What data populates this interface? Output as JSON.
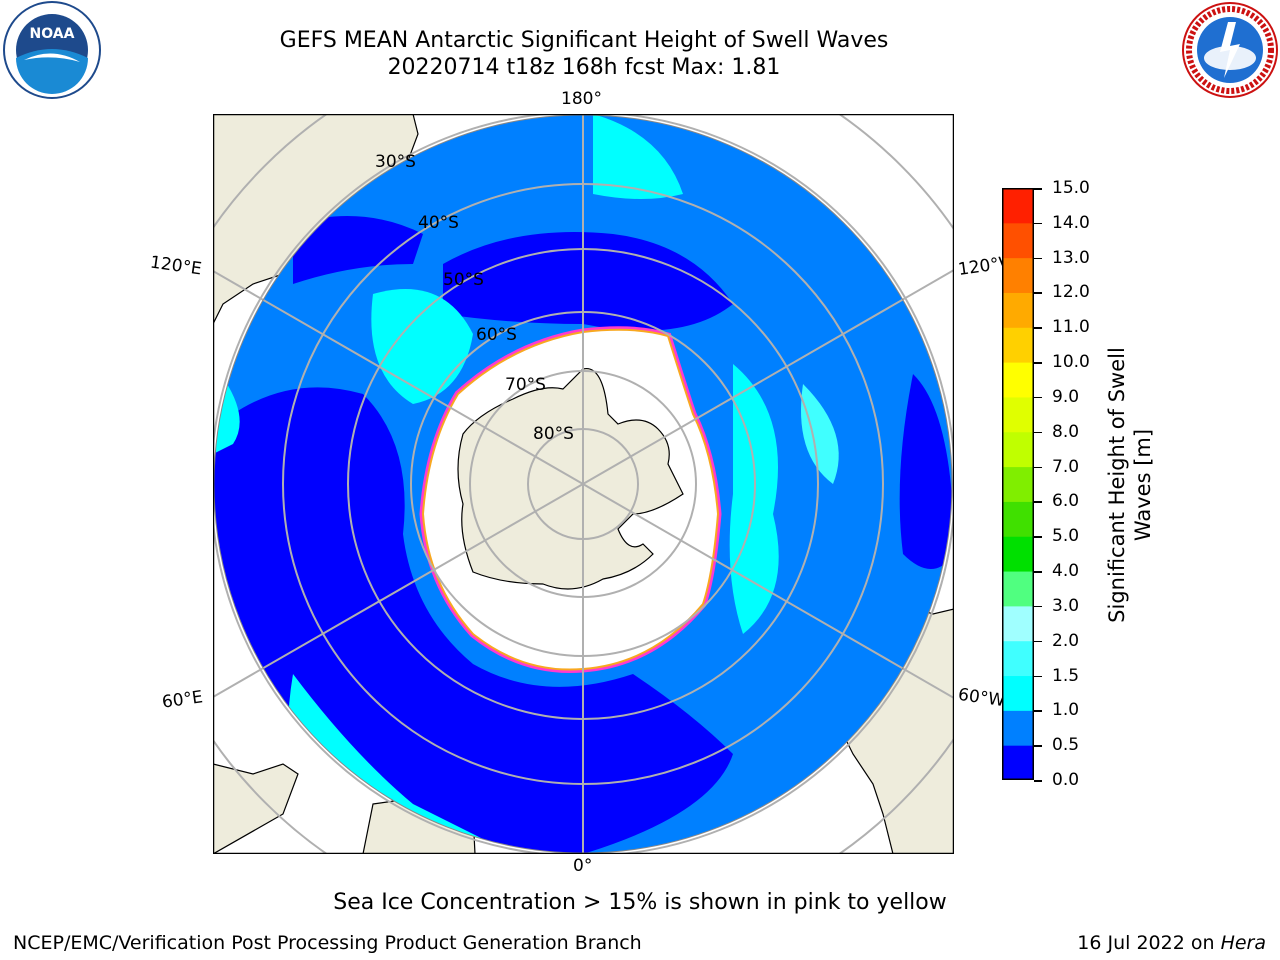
{
  "header": {
    "title_line1": "GEFS MEAN Antarctic Significant Height of Swell Waves",
    "title_line2": "20220714 t18z 168h fcst   Max: 1.81"
  },
  "logos": {
    "left": {
      "text": "NOAA",
      "icon": "noaa-logo-icon"
    },
    "right": {
      "text": "NATIONAL WEATHER SERVICE",
      "icon": "nws-logo-icon"
    }
  },
  "map": {
    "longitude_labels": {
      "top": "180°",
      "bottom": "0°",
      "left_upper": "120°E",
      "left_lower": "60°E",
      "right_upper": "120°W",
      "right_lower": "60°W"
    },
    "latitude_labels": [
      "30°S",
      "40°S",
      "50°S",
      "60°S",
      "70°S",
      "80°S"
    ],
    "colors": {
      "land": "#eeecdc",
      "ice": "#ffffff",
      "grid": "#b0b0b0"
    }
  },
  "colorbar": {
    "label": "Significant Height of Swell Waves [m]",
    "ticks": [
      "0.0",
      "0.5",
      "1.0",
      "1.5",
      "2.0",
      "3.0",
      "4.0",
      "5.0",
      "6.0",
      "7.0",
      "8.0",
      "9.0",
      "10.0",
      "11.0",
      "12.0",
      "13.0",
      "14.0",
      "15.0"
    ],
    "colors": [
      "#0000ff",
      "#0080ff",
      "#00ffff",
      "#40ffff",
      "#a0ffff",
      "#50ff80",
      "#00e000",
      "#40e000",
      "#80ee00",
      "#c0ff00",
      "#e0ff00",
      "#ffff00",
      "#ffd000",
      "#ffaa00",
      "#ff8000",
      "#ff5000",
      "#ff2000",
      "#ff0000"
    ]
  },
  "caption": "Sea Ice Concentration > 15% is shown in pink to yellow",
  "footer": {
    "left": "NCEP/EMC/Verification Post Processing Product Generation Branch",
    "right_prefix": "16 Jul 2022 on ",
    "right_host": "Hera"
  }
}
